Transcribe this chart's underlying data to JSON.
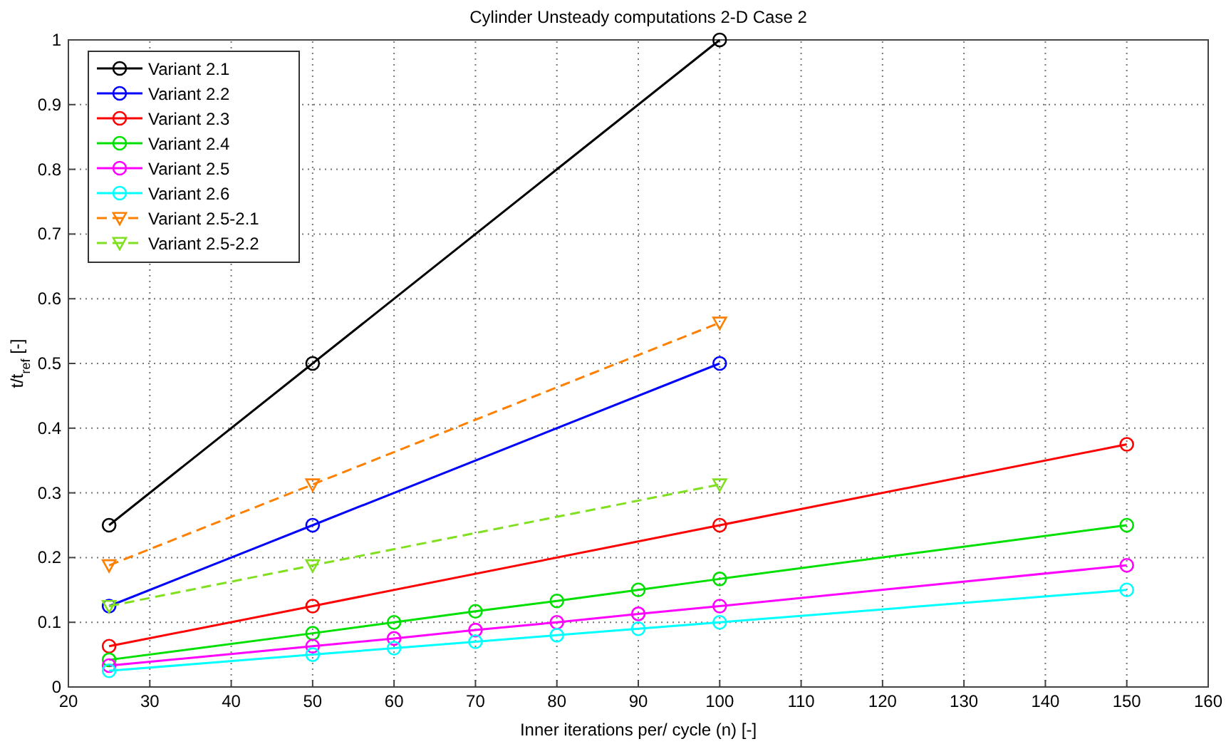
{
  "chart_data": {
    "type": "line",
    "title": "Cylinder Unsteady computations 2-D Case 2",
    "xlabel": "Inner iterations per/ cycle (n) [-]",
    "ylabel": "t/t$_{ref}$ [-]",
    "xlim": [
      20,
      160
    ],
    "xticks": [
      20,
      30,
      40,
      50,
      60,
      70,
      80,
      90,
      100,
      110,
      120,
      130,
      140,
      150,
      160
    ],
    "ylim": [
      0,
      1
    ],
    "yticks": [
      0,
      0.1,
      0.2,
      0.3,
      0.4,
      0.5,
      0.6,
      0.7,
      0.8,
      0.9,
      1
    ],
    "grid": true,
    "legend": "top left",
    "series": [
      {
        "name": "Variant 2.1",
        "color": "#000000",
        "marker": "circle",
        "line_style": "solid",
        "x": [
          25,
          50,
          100
        ],
        "values": [
          0.25,
          0.5,
          1.0
        ]
      },
      {
        "name": "Variant 2.2",
        "color": "#0000ff",
        "marker": "circle",
        "line_style": "solid",
        "x": [
          25,
          50,
          100
        ],
        "values": [
          0.125,
          0.25,
          0.5
        ]
      },
      {
        "name": "Variant 2.3",
        "color": "#ff0000",
        "marker": "circle",
        "line_style": "solid",
        "x": [
          25,
          50,
          100,
          150
        ],
        "values": [
          0.063,
          0.125,
          0.25,
          0.375
        ]
      },
      {
        "name": "Variant 2.4",
        "color": "#00e000",
        "marker": "circle",
        "line_style": "solid",
        "x": [
          25,
          50,
          60,
          70,
          80,
          90,
          100,
          150
        ],
        "values": [
          0.042,
          0.083,
          0.1,
          0.117,
          0.133,
          0.15,
          0.167,
          0.25
        ]
      },
      {
        "name": "Variant 2.5",
        "color": "#ff00ff",
        "marker": "circle",
        "line_style": "solid",
        "x": [
          25,
          50,
          60,
          70,
          80,
          90,
          100,
          150
        ],
        "values": [
          0.033,
          0.063,
          0.075,
          0.088,
          0.1,
          0.113,
          0.125,
          0.188
        ]
      },
      {
        "name": "Variant 2.6",
        "color": "#00ffff",
        "marker": "circle",
        "line_style": "solid",
        "x": [
          25,
          50,
          60,
          70,
          80,
          90,
          100,
          150
        ],
        "values": [
          0.025,
          0.05,
          0.06,
          0.07,
          0.08,
          0.09,
          0.1,
          0.15
        ]
      },
      {
        "name": "Variant 2.5-2.1",
        "color": "#ff8000",
        "marker": "triangle",
        "line_style": "dashed",
        "x": [
          25,
          50,
          100
        ],
        "values": [
          0.188,
          0.313,
          0.563
        ]
      },
      {
        "name": "Variant 2.5-2.2",
        "color": "#80e020",
        "marker": "triangle",
        "line_style": "dashed",
        "x": [
          25,
          50,
          100
        ],
        "values": [
          0.125,
          0.188,
          0.313
        ]
      }
    ]
  }
}
